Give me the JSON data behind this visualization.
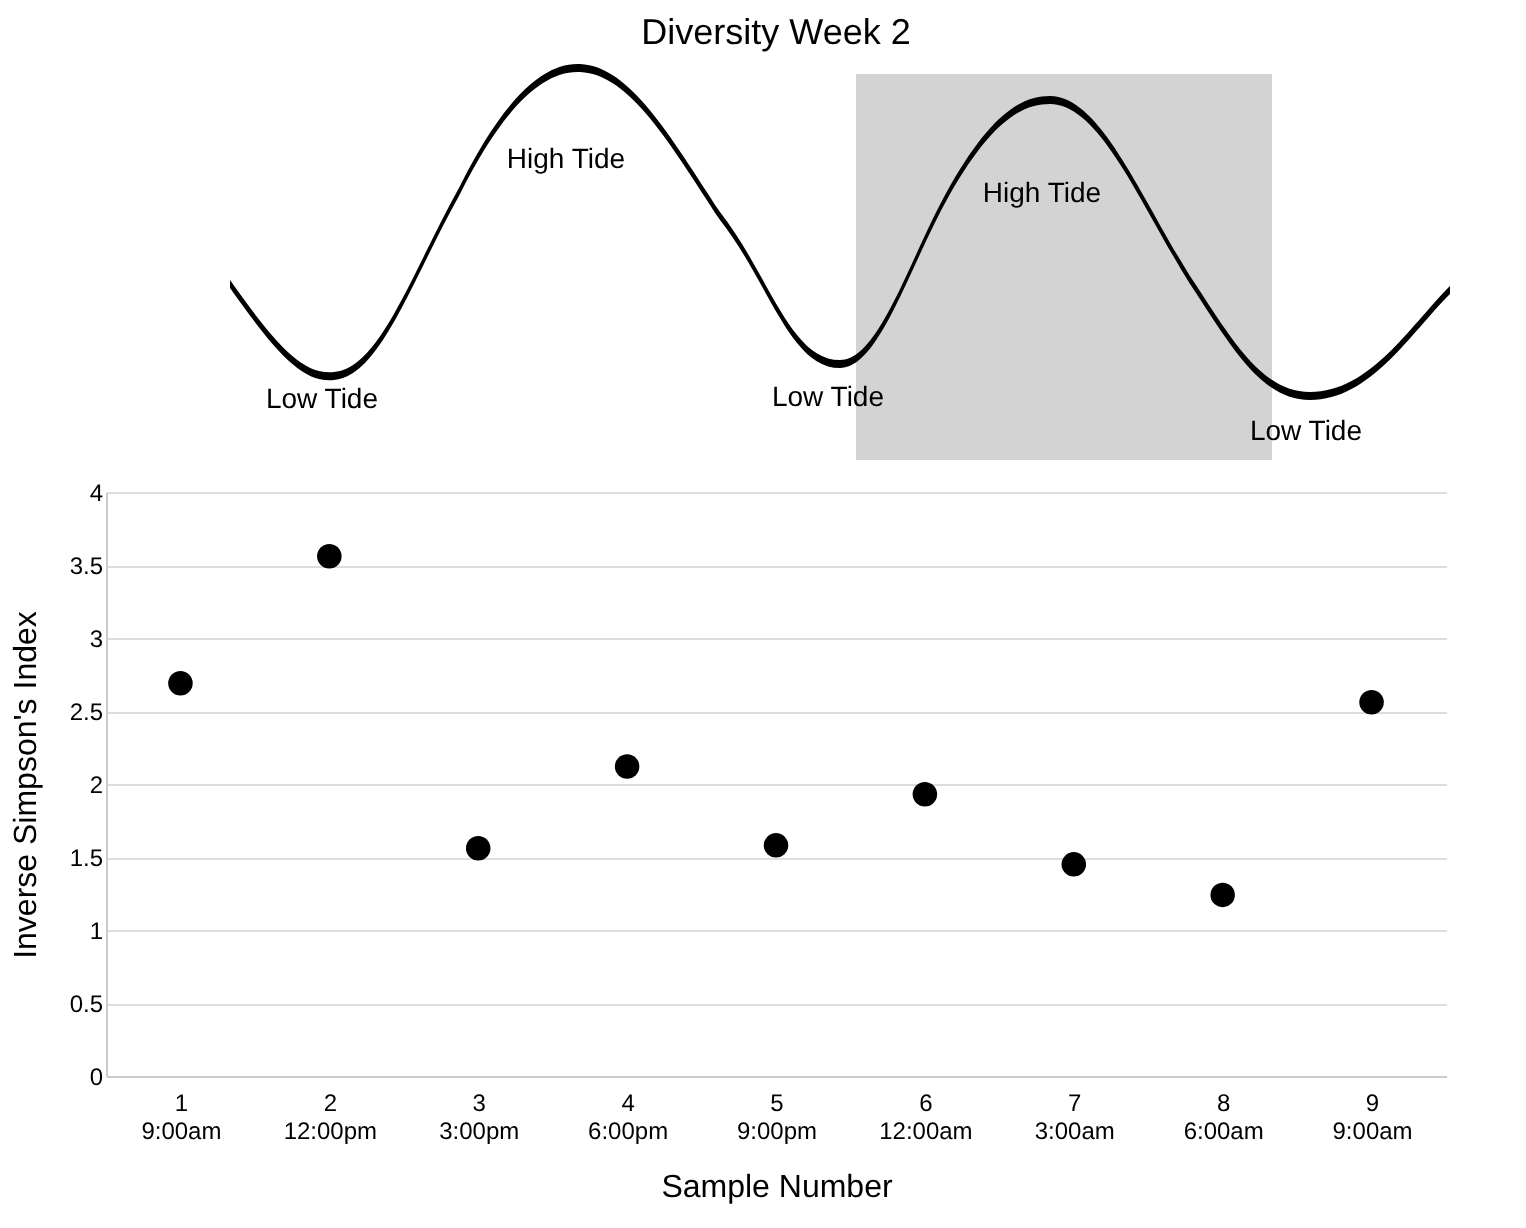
{
  "chart_data": {
    "type": "scatter",
    "title": "Diversity Week 2",
    "xlabel": "Sample Number",
    "ylabel": "Inverse Simpson's Index",
    "categories": [
      "1\n9:00am",
      "2\n12:00pm",
      "3\n3:00pm",
      "4\n6:00pm",
      "5\n9:00pm",
      "6\n12:00am",
      "7\n3:00am",
      "8\n6:00am",
      "9\n9:00am"
    ],
    "series": [
      {
        "color": "#000000",
        "values": [
          2.69,
          3.56,
          1.56,
          2.12,
          1.58,
          1.93,
          1.45,
          1.24,
          2.56
        ]
      }
    ],
    "ylim": [
      0,
      4
    ],
    "yticks": [
      0,
      0.5,
      1,
      1.5,
      2,
      2.5,
      3,
      3.5,
      4
    ],
    "grid": "y",
    "marker": "circle",
    "legend": false,
    "annotations": [
      "Low Tide",
      "High Tide",
      "Low Tide",
      "High Tide",
      "Low Tide"
    ]
  }
}
